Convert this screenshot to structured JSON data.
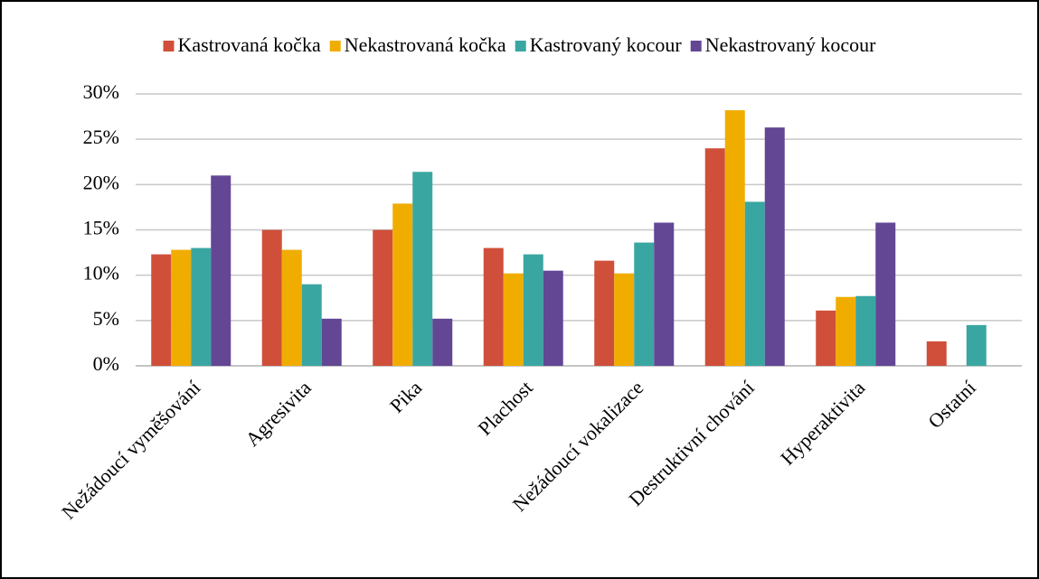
{
  "chart_data": {
    "type": "bar",
    "categories": [
      "Nežádoucí vyměšování",
      "Agresivita",
      "Pika",
      "Plachost",
      "Nežádoucí vokalizace",
      "Destruktivní chování",
      "Hyperaktivita",
      "Ostatní"
    ],
    "series": [
      {
        "name": "Kastrovaná kočka",
        "color": "#cf4f3a",
        "values": [
          12.3,
          15.0,
          15.0,
          13.0,
          11.6,
          24.0,
          6.1,
          2.7
        ]
      },
      {
        "name": "Nekastrovaná kočka",
        "color": "#f0ad00",
        "values": [
          12.8,
          12.8,
          17.9,
          10.2,
          10.2,
          28.2,
          7.6,
          0
        ]
      },
      {
        "name": "Kastrovaný kocour",
        "color": "#3aa6a1",
        "values": [
          13.0,
          9.0,
          21.4,
          12.3,
          13.6,
          18.1,
          7.7,
          4.5
        ]
      },
      {
        "name": "Nekastrovaný kocour",
        "color": "#634795",
        "values": [
          21.0,
          5.2,
          5.2,
          10.5,
          15.8,
          26.3,
          15.8,
          0
        ]
      }
    ],
    "ylim": [
      0,
      30
    ],
    "yticks": [
      {
        "value": 0,
        "label": "0%"
      },
      {
        "value": 5,
        "label": "5%"
      },
      {
        "value": 10,
        "label": "10%"
      },
      {
        "value": 15,
        "label": "15%"
      },
      {
        "value": 20,
        "label": "20%"
      },
      {
        "value": 25,
        "label": "25%"
      },
      {
        "value": 30,
        "label": "30%"
      }
    ],
    "grid": true,
    "legend": "top"
  }
}
